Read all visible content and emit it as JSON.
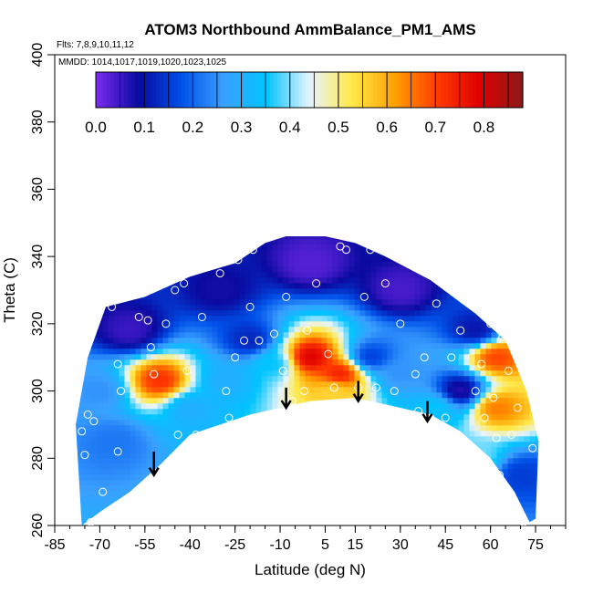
{
  "chart_data": {
    "type": "heatmap",
    "title": "ATOM3 Northbound AmmBalance_PM1_AMS",
    "flights_note": "Flts: 7,8,9,10,11,12",
    "mmdd_note": "MMDD: 1014,1017,1019,1020,1023,1025",
    "xlabel": "Latitude (deg N)",
    "ylabel": "Theta (C)",
    "xlim": [
      -85,
      85
    ],
    "ylim": [
      260,
      400
    ],
    "x_ticks": [
      -85,
      -70,
      -55,
      -40,
      -25,
      -10,
      5,
      15,
      30,
      45,
      60,
      75
    ],
    "y_ticks": [
      260,
      280,
      300,
      320,
      340,
      360,
      380,
      400
    ],
    "colorbar": {
      "range": [
        0.0,
        0.88
      ],
      "ticks": [
        0.0,
        0.1,
        0.2,
        0.3,
        0.4,
        0.5,
        0.6,
        0.7,
        0.8
      ],
      "tick_labels": [
        "0.0",
        "0.1",
        "0.2",
        "0.3",
        "0.4",
        "0.5",
        "0.6",
        "0.7",
        "0.8"
      ],
      "colors": [
        "#7b2cf0",
        "#0a0aa0",
        "#0050e8",
        "#3aa0ff",
        "#00c4ff",
        "#e6f4ff",
        "#ffe94a",
        "#ffa000",
        "#ff3a00",
        "#e00000",
        "#8a1a1a"
      ]
    },
    "coverage_envelope": {
      "lower": [
        [
          -76,
          260
        ],
        [
          -70,
          264
        ],
        [
          -60,
          270
        ],
        [
          -50,
          278
        ],
        [
          -40,
          287
        ],
        [
          -30,
          290
        ],
        [
          -20,
          293
        ],
        [
          -10,
          295
        ],
        [
          0,
          297
        ],
        [
          15,
          298
        ],
        [
          30,
          295
        ],
        [
          40,
          293
        ],
        [
          50,
          288
        ],
        [
          60,
          280
        ],
        [
          68,
          270
        ],
        [
          73,
          261
        ]
      ],
      "upper": [
        [
          -78,
          290
        ],
        [
          -74,
          310
        ],
        [
          -68,
          325
        ],
        [
          -55,
          328
        ],
        [
          -40,
          334
        ],
        [
          -25,
          338
        ],
        [
          -15,
          344
        ],
        [
          -8,
          346
        ],
        [
          5,
          346
        ],
        [
          15,
          344
        ],
        [
          25,
          340
        ],
        [
          40,
          333
        ],
        [
          55,
          323
        ],
        [
          65,
          315
        ],
        [
          72,
          300
        ],
        [
          76,
          285
        ],
        [
          75,
          262
        ]
      ]
    },
    "values_field": [
      {
        "x": -60,
        "y": 318,
        "v": 0.05
      },
      {
        "x": -30,
        "y": 330,
        "v": 0.08
      },
      {
        "x": 0,
        "y": 338,
        "v": 0.03
      },
      {
        "x": 30,
        "y": 330,
        "v": 0.04
      },
      {
        "x": 55,
        "y": 318,
        "v": 0.1
      },
      {
        "x": -50,
        "y": 303,
        "v": 0.72
      },
      {
        "x": -70,
        "y": 300,
        "v": 0.25
      },
      {
        "x": -65,
        "y": 285,
        "v": 0.22
      },
      {
        "x": -40,
        "y": 295,
        "v": 0.3
      },
      {
        "x": -28,
        "y": 303,
        "v": 0.3
      },
      {
        "x": -20,
        "y": 315,
        "v": 0.12
      },
      {
        "x": -12,
        "y": 308,
        "v": 0.35
      },
      {
        "x": 0,
        "y": 310,
        "v": 0.8
      },
      {
        "x": 10,
        "y": 305,
        "v": 0.75
      },
      {
        "x": 8,
        "y": 300,
        "v": 0.55
      },
      {
        "x": 20,
        "y": 310,
        "v": 0.15
      },
      {
        "x": 30,
        "y": 305,
        "v": 0.25
      },
      {
        "x": 42,
        "y": 295,
        "v": 0.35
      },
      {
        "x": 50,
        "y": 300,
        "v": 0.06
      },
      {
        "x": 62,
        "y": 310,
        "v": 0.7
      },
      {
        "x": 62,
        "y": 295,
        "v": 0.65
      },
      {
        "x": 55,
        "y": 280,
        "v": 0.4
      },
      {
        "x": 70,
        "y": 275,
        "v": 0.15
      }
    ],
    "sample_points": [
      [
        -76,
        288
      ],
      [
        -75,
        281
      ],
      [
        -74,
        293
      ],
      [
        -73,
        261
      ],
      [
        -72,
        291
      ],
      [
        -69,
        270
      ],
      [
        -66,
        325
      ],
      [
        -64,
        282
      ],
      [
        -64,
        308
      ],
      [
        -63,
        300
      ],
      [
        -57,
        322
      ],
      [
        -54,
        321
      ],
      [
        -53,
        313
      ],
      [
        -52,
        305
      ],
      [
        -48,
        320
      ],
      [
        -45,
        330
      ],
      [
        -44,
        287
      ],
      [
        -42,
        332
      ],
      [
        -41,
        306
      ],
      [
        -38,
        287
      ],
      [
        -36,
        322
      ],
      [
        -30,
        335
      ],
      [
        -28,
        300
      ],
      [
        -27,
        292
      ],
      [
        -25,
        310
      ],
      [
        -24,
        339
      ],
      [
        -22,
        315
      ],
      [
        -20,
        325
      ],
      [
        -19,
        342
      ],
      [
        -17,
        315
      ],
      [
        -16,
        345
      ],
      [
        -12,
        317
      ],
      [
        -9,
        306
      ],
      [
        -8,
        328
      ],
      [
        -6,
        297
      ],
      [
        -2,
        300
      ],
      [
        -1,
        318
      ],
      [
        2,
        332
      ],
      [
        6,
        311
      ],
      [
        8,
        301
      ],
      [
        10,
        343
      ],
      [
        12,
        342
      ],
      [
        16,
        301
      ],
      [
        18,
        328
      ],
      [
        20,
        342
      ],
      [
        22,
        301
      ],
      [
        25,
        332
      ],
      [
        28,
        300
      ],
      [
        30,
        320
      ],
      [
        35,
        305
      ],
      [
        36,
        294
      ],
      [
        38,
        310
      ],
      [
        40,
        292
      ],
      [
        42,
        326
      ],
      [
        45,
        292
      ],
      [
        47,
        310
      ],
      [
        50,
        318
      ],
      [
        55,
        300
      ],
      [
        57,
        308
      ],
      [
        58,
        292
      ],
      [
        60,
        320
      ],
      [
        61,
        298
      ],
      [
        62,
        286
      ],
      [
        63,
        275
      ],
      [
        64,
        316
      ],
      [
        66,
        306
      ],
      [
        67,
        287
      ],
      [
        69,
        295
      ],
      [
        71,
        261
      ],
      [
        74,
        283
      ]
    ],
    "arrows": [
      {
        "x": -52,
        "y_top": 282,
        "y_bottom": 275
      },
      {
        "x": -8,
        "y_top": 301,
        "y_bottom": 295
      },
      {
        "x": 16,
        "y_top": 303,
        "y_bottom": 297
      },
      {
        "x": 39,
        "y_top": 297,
        "y_bottom": 291
      }
    ],
    "legend_position": "top-center horizontal colorbar",
    "grid": false
  }
}
